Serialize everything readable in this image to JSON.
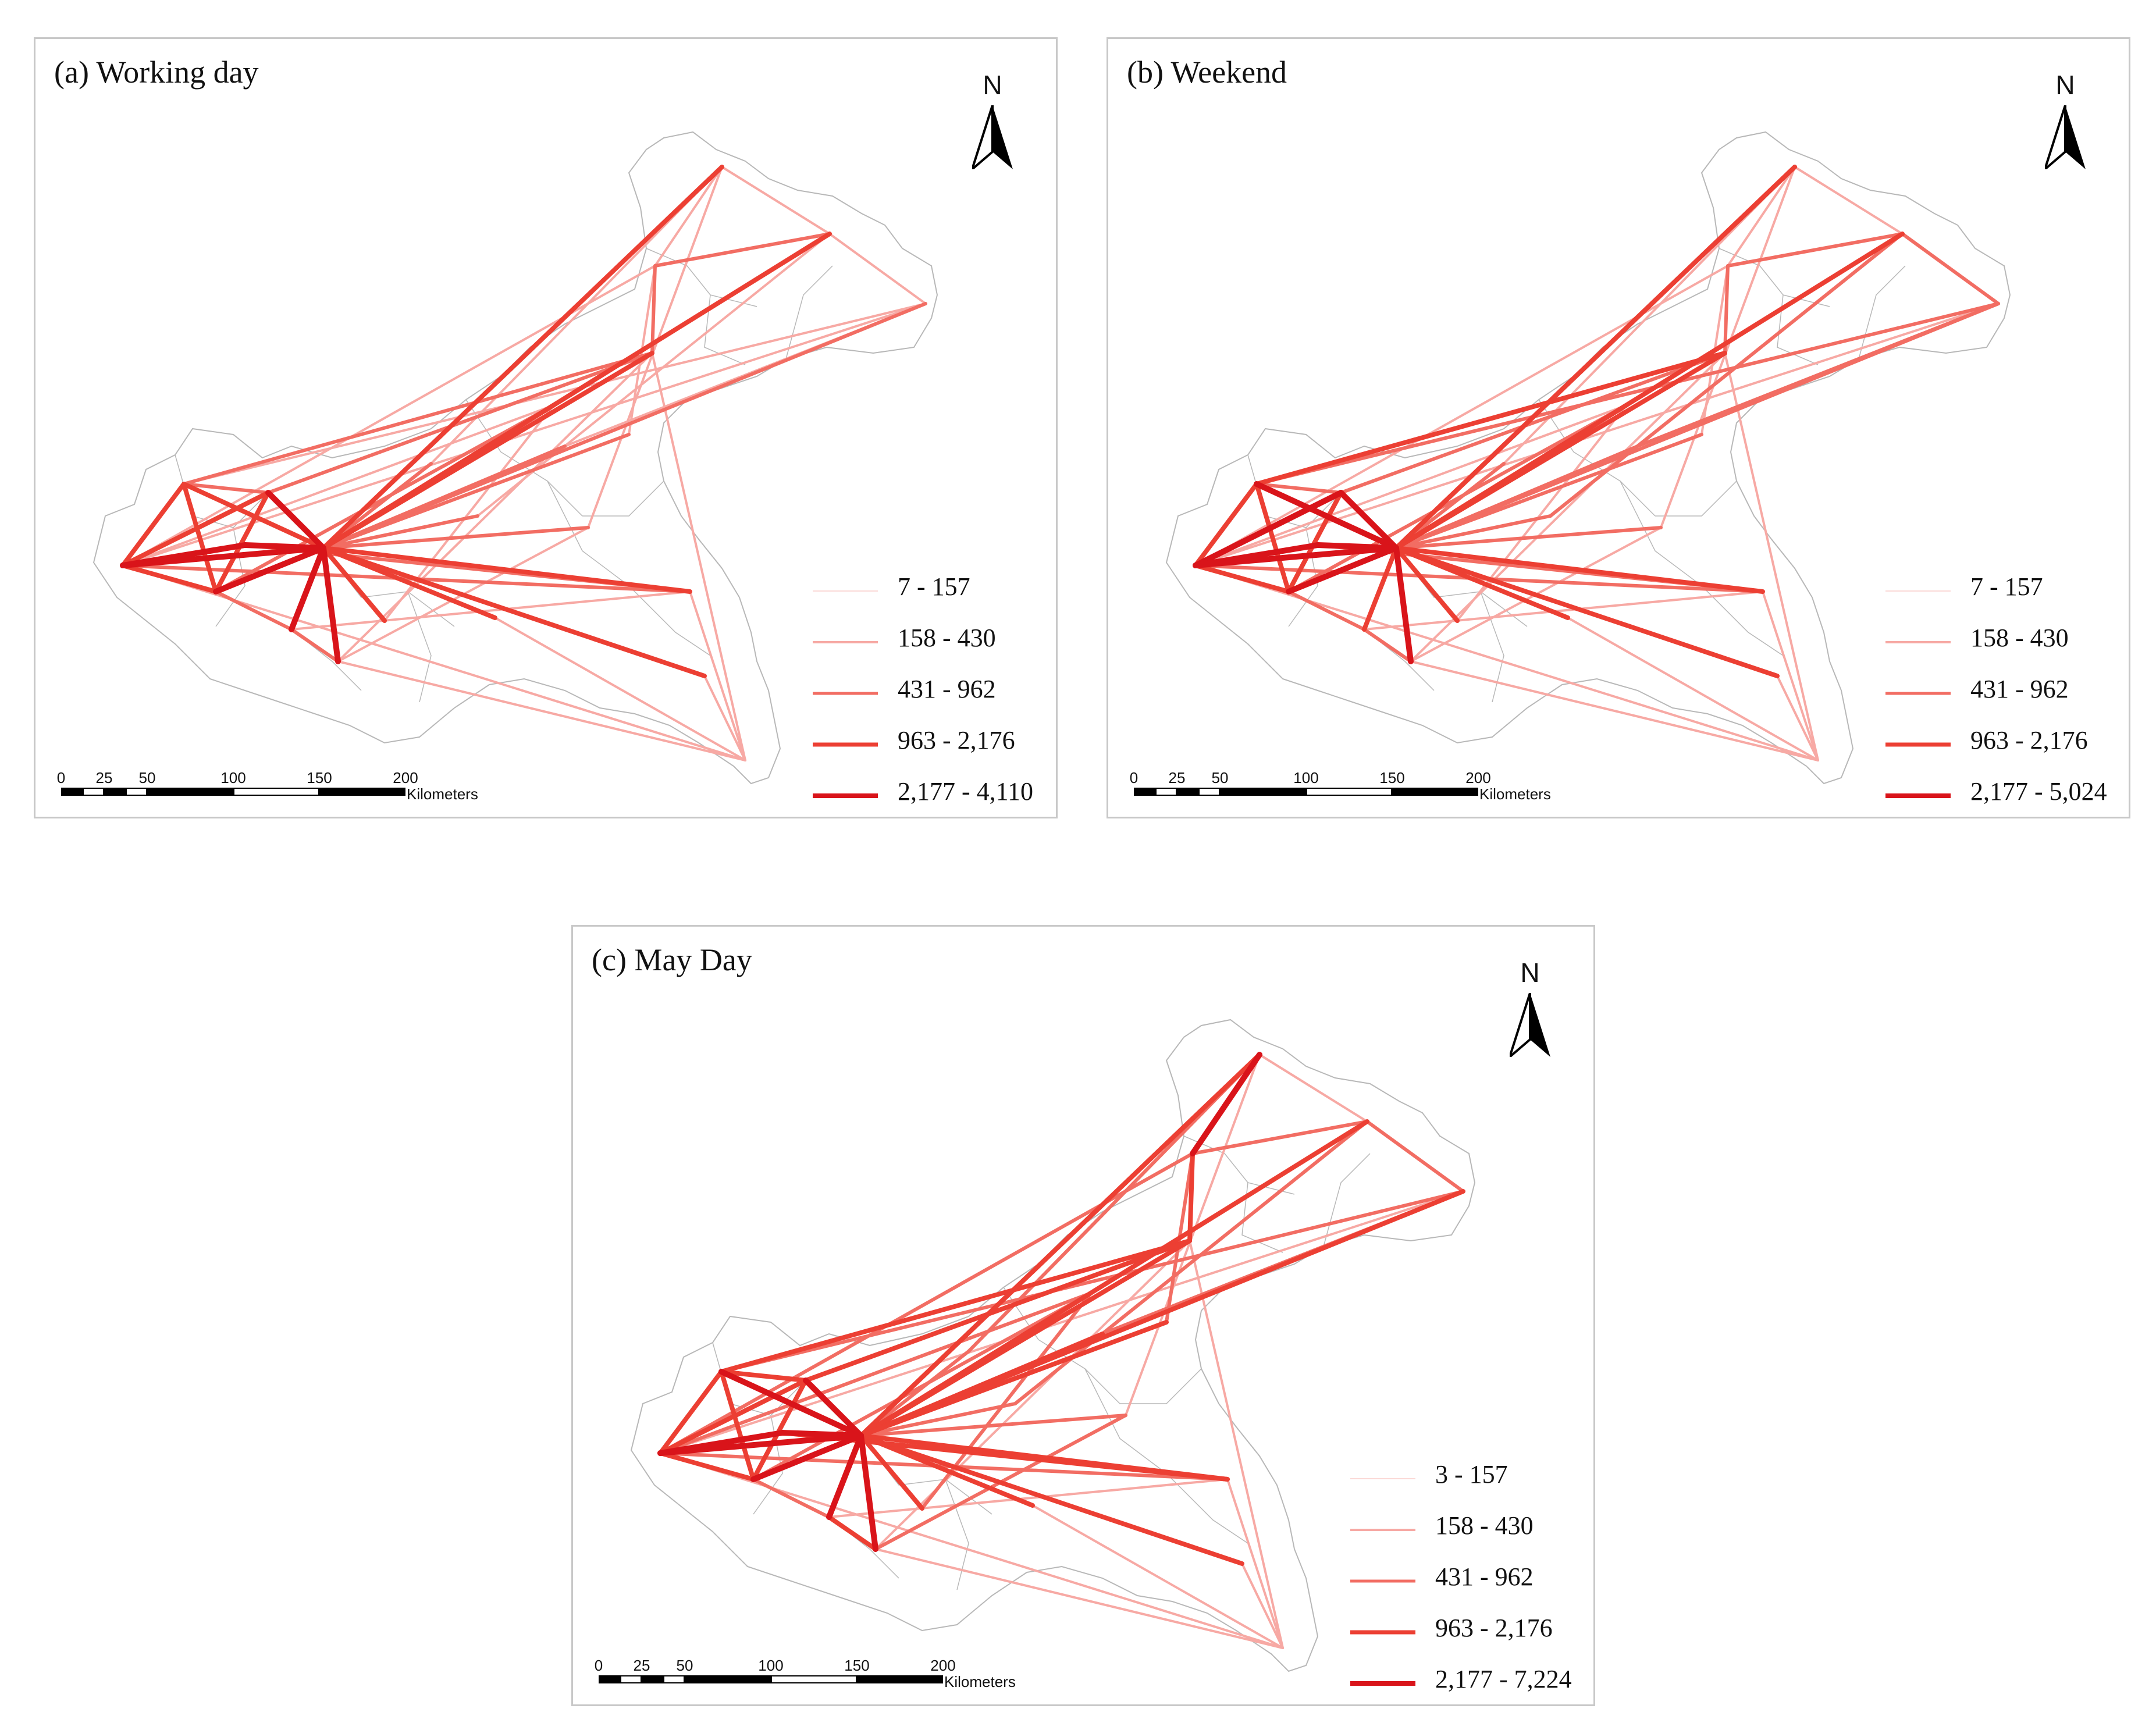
{
  "figure": {
    "panels": [
      {
        "id": "a",
        "title": "(a) Working day",
        "north_label": "N",
        "legend": [
          "7 - 157",
          "158 - 430",
          "431 - 962",
          "963 - 2,176",
          "2,177 - 4,110"
        ],
        "scale": {
          "ticks": [
            "0",
            "25",
            "50",
            "100",
            "150",
            "200"
          ],
          "unit": "Kilometers"
        }
      },
      {
        "id": "b",
        "title": "(b) Weekend",
        "north_label": "N",
        "legend": [
          "7 - 157",
          "158 - 430",
          "431 - 962",
          "963 - 2,176",
          "2,177 - 5,024"
        ],
        "scale": {
          "ticks": [
            "0",
            "25",
            "50",
            "100",
            "150",
            "200"
          ],
          "unit": "Kilometers"
        }
      },
      {
        "id": "c",
        "title": "(c) May Day",
        "north_label": "N",
        "legend": [
          "3 - 157",
          "158 - 430",
          "431 - 962",
          "963 - 2,176",
          "2,177 - 7,224"
        ],
        "scale": {
          "ticks": [
            "0",
            "25",
            "50",
            "100",
            "150",
            "200"
          ],
          "unit": "Kilometers"
        }
      }
    ],
    "flow_class_colors": [
      "#fbd9d7",
      "#f7a9a4",
      "#f26d63",
      "#ec3f33",
      "#d9141a"
    ],
    "boundary_color": "#b8b8b8"
  }
}
